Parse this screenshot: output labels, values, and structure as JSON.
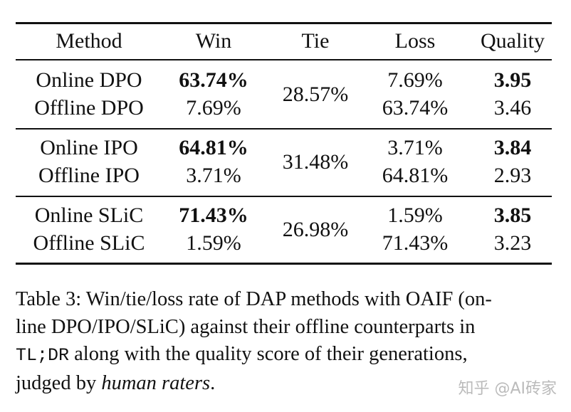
{
  "table": {
    "headers": [
      "Method",
      "Win",
      "Tie",
      "Loss",
      "Quality"
    ],
    "groups": [
      {
        "tie": "28.57%",
        "rows": [
          {
            "method": "Online DPO",
            "win": "63.74%",
            "loss": "7.69%",
            "quality": "3.95",
            "bold": true
          },
          {
            "method": "Offline DPO",
            "win": "7.69%",
            "loss": "63.74%",
            "quality": "3.46",
            "bold": false
          }
        ]
      },
      {
        "tie": "31.48%",
        "rows": [
          {
            "method": "Online IPO",
            "win": "64.81%",
            "loss": "3.71%",
            "quality": "3.84",
            "bold": true
          },
          {
            "method": "Offline IPO",
            "win": "3.71%",
            "loss": "64.81%",
            "quality": "2.93",
            "bold": false
          }
        ]
      },
      {
        "tie": "26.98%",
        "rows": [
          {
            "method": "Online SLiC",
            "win": "71.43%",
            "loss": "1.59%",
            "quality": "3.85",
            "bold": true
          },
          {
            "method": "Offline SLiC",
            "win": "1.59%",
            "loss": "71.43%",
            "quality": "3.23",
            "bold": false
          }
        ]
      }
    ]
  },
  "caption": {
    "line1": "Table 3: Win/tie/loss rate of DAP methods with OAIF (on-",
    "line2": "line DPO/IPO/SLiC) against their offline counterparts in",
    "line3_mono": "TL;DR",
    "line3_rest": " along with the quality score of their generations,",
    "line4_pre": "judged by ",
    "line4_italic": "human raters",
    "line4_post": "."
  },
  "watermark": "知乎 @AI砖家"
}
